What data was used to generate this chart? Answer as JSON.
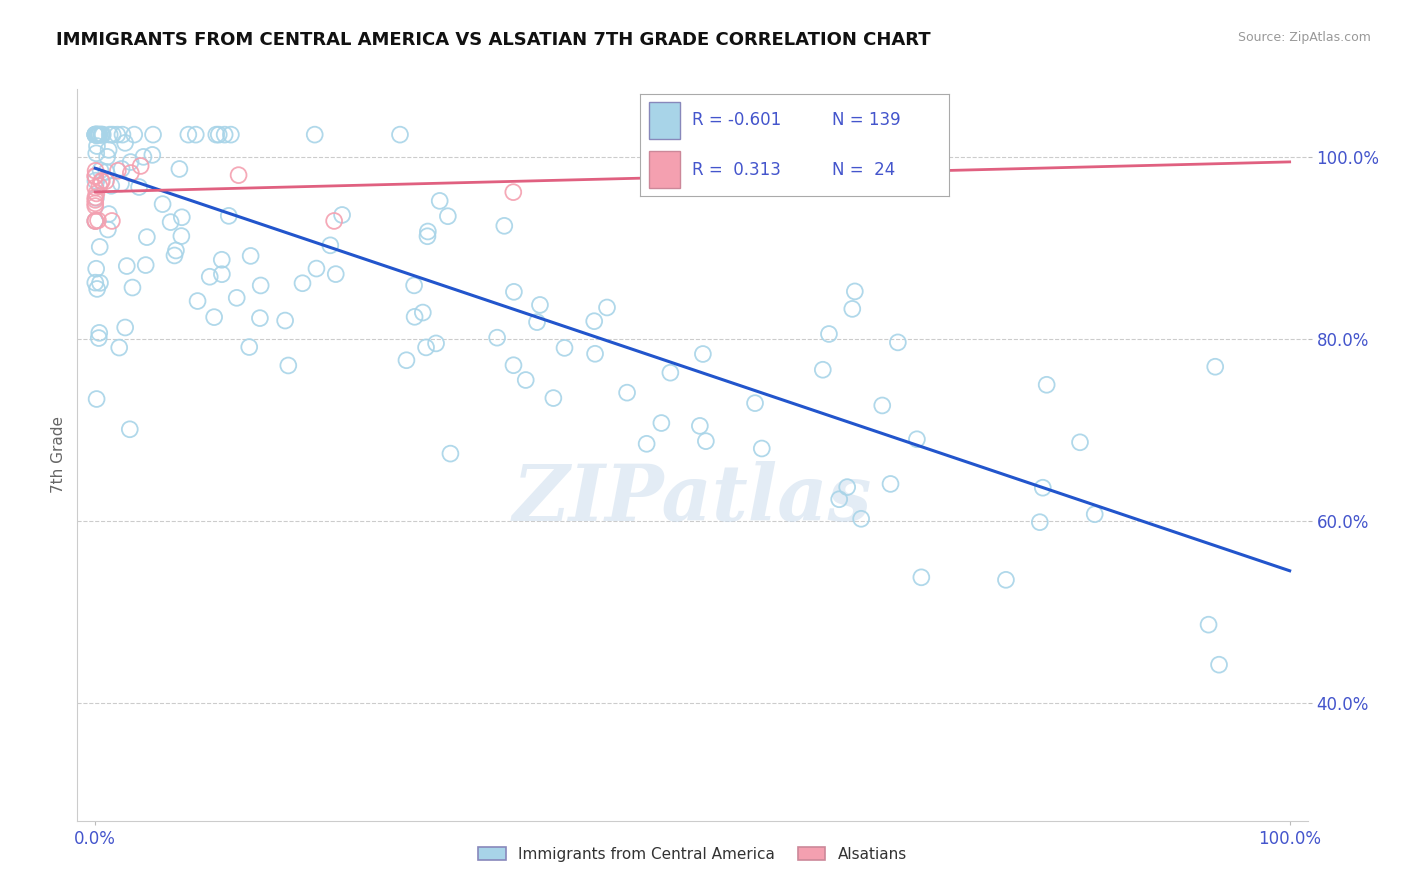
{
  "title": "IMMIGRANTS FROM CENTRAL AMERICA VS ALSATIAN 7TH GRADE CORRELATION CHART",
  "source_text": "Source: ZipAtlas.com",
  "ylabel": "7th Grade",
  "legend_r_blue": "-0.601",
  "legend_n_blue": "139",
  "legend_r_pink": "0.313",
  "legend_n_pink": "24",
  "blue_scatter_color": "#A8D4E8",
  "blue_line_color": "#2255CC",
  "pink_scatter_color": "#F4A0B0",
  "pink_line_color": "#E06080",
  "watermark": "ZIPatlas",
  "background_color": "#ffffff",
  "grid_color": "#cccccc",
  "tick_label_color": "#4455CC",
  "title_color": "#111111",
  "source_color": "#999999",
  "ylabel_color": "#666666",
  "xlim": [
    -0.015,
    1.015
  ],
  "ylim": [
    0.27,
    1.075
  ],
  "yticks": [
    0.4,
    0.6,
    0.8,
    1.0
  ],
  "yticklabels": [
    "40.0%",
    "60.0%",
    "80.0%",
    "100.0%"
  ],
  "xticks": [
    0.0,
    1.0
  ],
  "xticklabels": [
    "0.0%",
    "100.0%"
  ],
  "blue_line_x": [
    0.0,
    1.0
  ],
  "blue_line_y": [
    0.988,
    0.545
  ],
  "pink_line_x": [
    0.0,
    1.0
  ],
  "pink_line_y": [
    0.962,
    0.995
  ]
}
